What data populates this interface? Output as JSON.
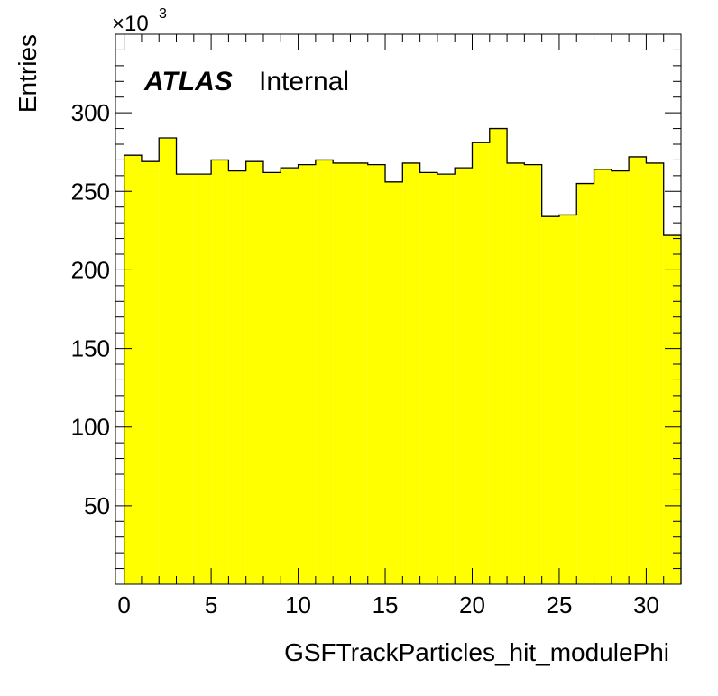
{
  "chart_data": {
    "type": "bar",
    "title": "",
    "xlabel": "GSFTrackParticles_hit_modulePhi",
    "ylabel": "Entries",
    "y_multiplier_base": "×10",
    "y_multiplier_exp": "3",
    "xlim": [
      -0.5,
      32.0
    ],
    "ylim": [
      0,
      350
    ],
    "x_ticks": [
      0,
      5,
      10,
      15,
      20,
      25,
      30
    ],
    "y_ticks": [
      50,
      100,
      150,
      200,
      250,
      300
    ],
    "y_minor_step": 10,
    "x_minor_step": 1,
    "bin_edges_start": 0,
    "bin_width": 1,
    "values": [
      273,
      269,
      284,
      261,
      261,
      270,
      263,
      269,
      262,
      265,
      267,
      270,
      268,
      268,
      267,
      256,
      268,
      262,
      261,
      265,
      281,
      290,
      268,
      267,
      234,
      235,
      255,
      264,
      263,
      272,
      268,
      222
    ],
    "fill_color": "#ffff00",
    "line_color": "#000000",
    "labels": {
      "experiment": "ATLAS",
      "status": "Internal"
    }
  }
}
